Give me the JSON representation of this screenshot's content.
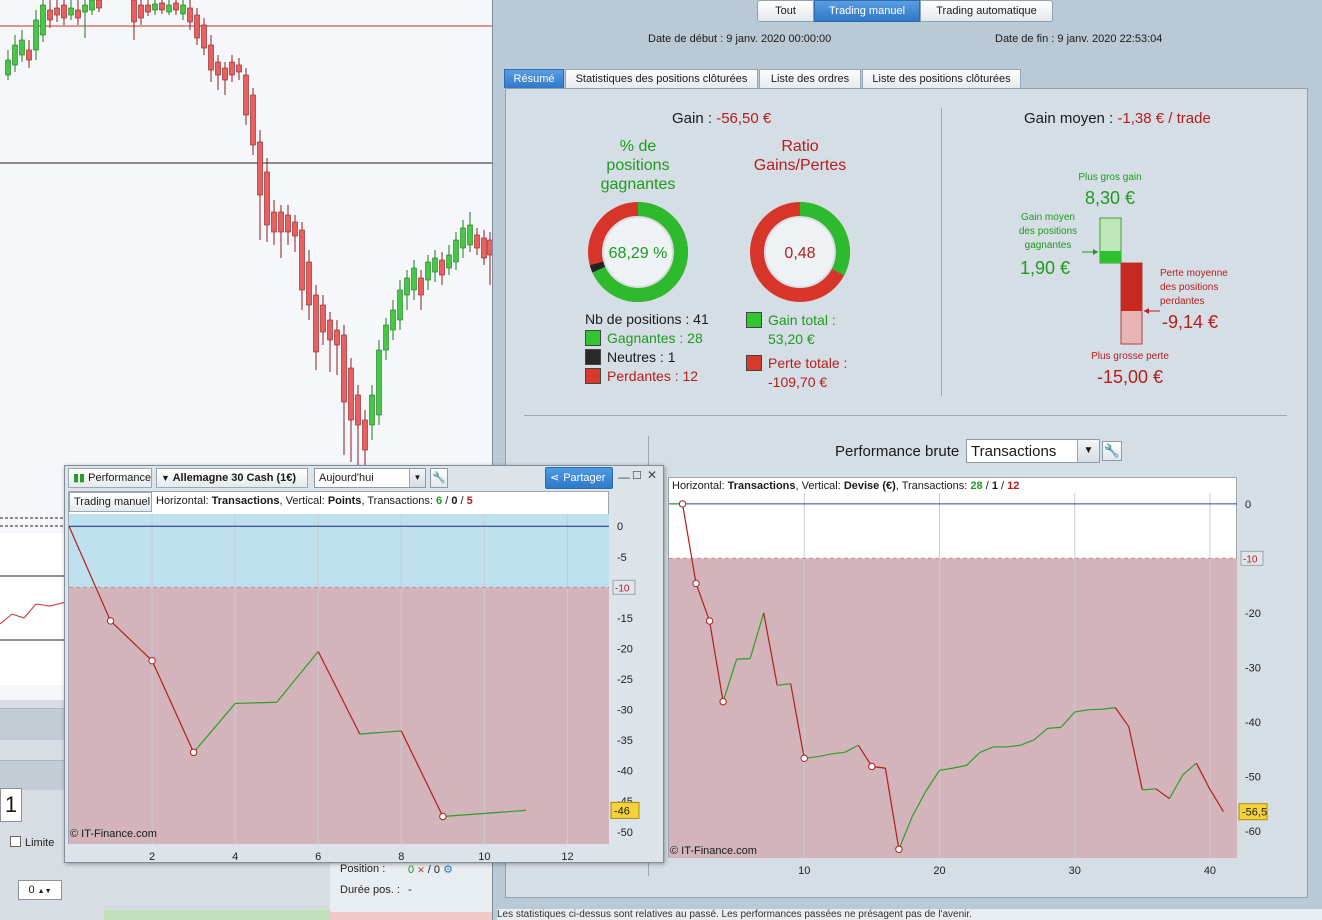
{
  "mode_tabs": [
    "Tout",
    "Trading manuel",
    "Trading automatique"
  ],
  "dates": {
    "start_label": "Date de début :",
    "start_value": "9 janv. 2020 00:00:00",
    "end_label": "Date de fin :",
    "end_value": "9 janv. 2020 22:53:04"
  },
  "report_tabs": [
    "Résumé",
    "Statistiques des positions clôturées",
    "Liste des ordres",
    "Liste des positions clôturées"
  ],
  "summary": {
    "gain_label": "Gain :",
    "gain_value": "-56,50 €",
    "avg_gain_label": "Gain moyen :",
    "avg_gain_value": "-1,38 € / trade",
    "pct_title_l1": "% de",
    "pct_title_l2": "positions",
    "pct_title_l3": "gagnantes",
    "pct_value": "68,29 %",
    "pct_fraction": 0.6829,
    "ratio_title_l1": "Ratio",
    "ratio_title_l2": "Gains/Pertes",
    "ratio_value": "0,48",
    "ratio_fraction": 0.327,
    "nb_positions": "Nb de positions : 41",
    "gagnantes": "Gagnantes : 28",
    "neutres": "Neutres : 1",
    "perdantes": "Perdantes : 12",
    "gain_total_label": "Gain total :",
    "gain_total_value": "53,20 €",
    "perte_totale_label": "Perte totale :",
    "perte_totale_value": "-109,70 €",
    "plus_gros_gain_label": "Plus gros gain",
    "plus_gros_gain_value": "8,30 €",
    "gain_moyen_l1": "Gain moyen",
    "gain_moyen_l2": "des positions",
    "gain_moyen_l3": "gagnantes",
    "gain_moyen_value": "1,90 €",
    "perte_moyenne_l1": "Perte moyenne",
    "perte_moyenne_l2": "des positions",
    "perte_moyenne_l3": "perdantes",
    "perte_moyenne_value": "-9,14 €",
    "plus_grosse_perte_label": "Plus grosse perte",
    "plus_grosse_perte_value": "-15,00 €"
  },
  "perf_brute": {
    "label": "Performance brute",
    "select_value": "Transactions",
    "header": {
      "h": "Horizontal:",
      "hv": "Transactions",
      "v": ", Vertical:",
      "vv": "Devise (€)",
      "t": ", Transactions:",
      "wins": "28",
      "neutral": "1",
      "losses": "12"
    },
    "copyright": "© IT-Finance.com",
    "current_value_label": "-56,5",
    "threshold_label": "-10"
  },
  "float_window": {
    "title": "Performance",
    "instrument": "Allemagne 30 Cash (1€)",
    "period": "Aujourd'hui",
    "share": "Partager",
    "mode_button": "Trading manuel",
    "header": {
      "h": "Horizontal:",
      "hv": "Transactions",
      "v": ", Vertical:",
      "vv": "Points",
      "t": ", Transactions:",
      "wins": "6",
      "neutral": "0",
      "losses": "5"
    },
    "copyright": "© IT-Finance.com",
    "current_value_label": "-46",
    "threshold_label": "-10"
  },
  "bg_panel": {
    "qty": "1",
    "limite": "Limite",
    "stepper_value": "0",
    "position_label": "Position :",
    "position_value": "0",
    "position_sep": "/ 0",
    "duree_label": "Durée pos. :",
    "duree_value": "-"
  },
  "footer": "Les statistiques ci-dessus sont relatives au passé. Les performances passées ne présagent pas de l'avenir.",
  "colors": {
    "green": "#1e9a1e",
    "red": "#b41e1e",
    "accent": "#2f79c9"
  },
  "chart_data": [
    {
      "type": "line",
      "title": "",
      "xlabel": "Transactions",
      "ylabel": "Devise (€)",
      "xlim": [
        0,
        42
      ],
      "ylim": [
        -65,
        2
      ],
      "x_ticks": [
        10,
        20,
        30,
        40
      ],
      "y_ticks": [
        0,
        -10,
        -20,
        -30,
        -40,
        -50,
        -60
      ],
      "threshold": -10,
      "series": [
        {
          "x": [
            0,
            1,
            2,
            3,
            4,
            5,
            6,
            7,
            8,
            9,
            10,
            11,
            12,
            13,
            14,
            15,
            16,
            17,
            18,
            19,
            20,
            21,
            22,
            23,
            24,
            25,
            26,
            27,
            28,
            29,
            30,
            31,
            32,
            33,
            34,
            35,
            36,
            37,
            38,
            39,
            40,
            41
          ],
          "values": [
            0,
            0,
            -14.6,
            -21.5,
            -36.3,
            -28.5,
            -28.4,
            -20,
            -33.3,
            -33,
            -46.7,
            -46.4,
            -45.9,
            -45.6,
            -44.3,
            -48.2,
            -48.5,
            -63.4,
            -57.3,
            -52.7,
            -48.9,
            -48.5,
            -48,
            -45.6,
            -44.6,
            -44.6,
            -44.3,
            -43.3,
            -41.2,
            -41,
            -38.2,
            -37.8,
            -37.7,
            -37.4,
            -40.9,
            -52.5,
            -52.3,
            -54.1,
            -49.7,
            -47.6,
            -52.4,
            -56.5
          ]
        }
      ]
    },
    {
      "type": "line",
      "title": "",
      "xlabel": "Transactions",
      "ylabel": "Points",
      "xlim": [
        0,
        13
      ],
      "ylim": [
        -52,
        2
      ],
      "x_ticks": [
        2,
        4,
        6,
        8,
        10,
        12
      ],
      "y_ticks": [
        0,
        -5,
        -10,
        -15,
        -20,
        -25,
        -30,
        -35,
        -40,
        -45,
        -50
      ],
      "threshold": -10,
      "series": [
        {
          "x": [
            0,
            1,
            2,
            3,
            4,
            5,
            6,
            7,
            8,
            9,
            11
          ],
          "values": [
            0,
            -15.5,
            -22,
            -37,
            -29,
            -28.8,
            -20.5,
            -34,
            -33.5,
            -47.5,
            -46.5
          ]
        }
      ]
    }
  ]
}
